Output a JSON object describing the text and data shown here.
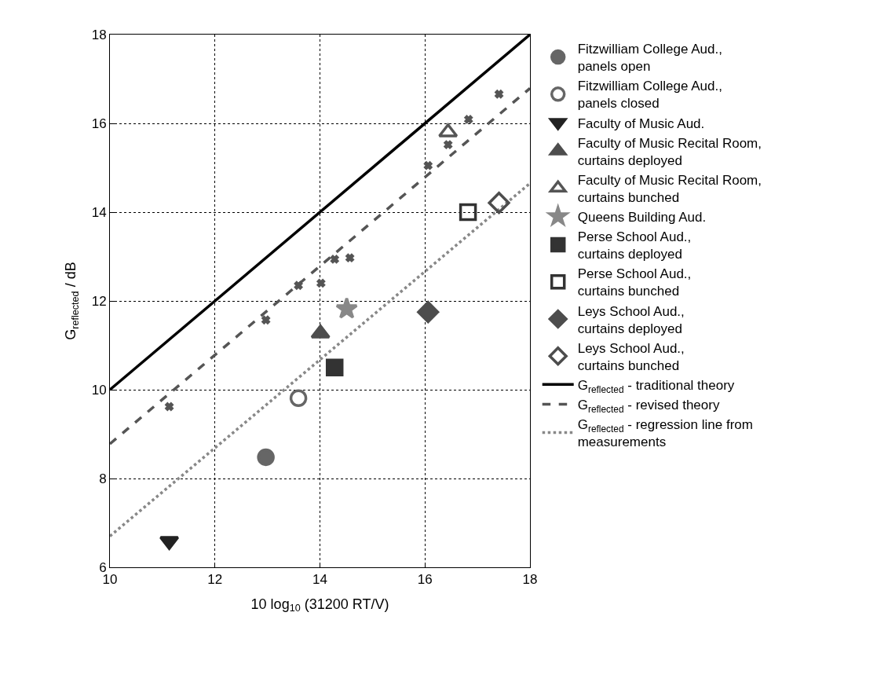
{
  "chart_data": {
    "type": "scatter",
    "xlabel": "10 log$_{10}$ (31200 RT/V)",
    "ylabel": "G$_{reflected}$ / dB",
    "xlim": [
      10,
      18
    ],
    "xticks": [
      10,
      12,
      14,
      16,
      18
    ],
    "ylim": [
      6,
      18
    ],
    "yticks": [
      6,
      8,
      10,
      12,
      14,
      16,
      18
    ],
    "grid": true,
    "legend": "right",
    "series": [
      {
        "name": "Fitzwilliam College Aud.,\npanels open",
        "color": "#666666",
        "marker": "circle",
        "x": [
          12.97
        ],
        "values": [
          8.48
        ]
      },
      {
        "name": "Fitzwilliam College Aud.,\npanels closed",
        "color": "#666666",
        "marker": "circle-open",
        "x": [
          13.59
        ],
        "values": [
          9.81
        ]
      },
      {
        "name": "Faculty of Music Aud.",
        "color": "#222222",
        "marker": "triangle-down",
        "x": [
          11.13
        ],
        "values": [
          6.59
        ]
      },
      {
        "name": "Faculty of Music Recital Room,\ncurtains deployed",
        "color": "#4d4d4d",
        "marker": "triangle",
        "x": [
          14.01
        ],
        "values": [
          11.27
        ]
      },
      {
        "name": "Faculty of Music Recital Room,\ncurtains bunched",
        "color": "#555555",
        "marker": "triangle-open",
        "x": [
          16.44
        ],
        "values": [
          15.8
        ]
      },
      {
        "name": "Queens Building Aud.",
        "color": "#888888",
        "marker": "star",
        "x": [
          14.51
        ],
        "values": [
          11.82
        ]
      },
      {
        "name": "Perse School Aud.,\ncurtains deployed",
        "color": "#333333",
        "marker": "square",
        "x": [
          14.28
        ],
        "values": [
          10.5
        ]
      },
      {
        "name": "Perse School Aud.,\ncurtains bunched",
        "color": "#333333",
        "marker": "square-open",
        "x": [
          16.82
        ],
        "values": [
          14.0
        ]
      },
      {
        "name": "Leys School Aud.,\ncurtains deployed",
        "color": "#4d4d4d",
        "marker": "diamond",
        "x": [
          16.06
        ],
        "values": [
          11.75
        ]
      },
      {
        "name": "Leys School Aud.,\ncurtains bunched",
        "color": "#4d4d4d",
        "marker": "diamond-open",
        "x": [
          17.41
        ],
        "values": [
          14.21
        ]
      },
      {
        "name": "G$_{reflected}$ - traditional theory",
        "type": "line",
        "color": "#000000",
        "line_style": "solid",
        "marker": "none",
        "x": [
          10,
          18
        ],
        "values": [
          10,
          18
        ]
      },
      {
        "color": "#555555",
        "marker": "cross",
        "x": [
          11.13,
          12.97,
          13.59,
          14.02,
          14.28,
          14.57,
          16.06,
          16.44,
          16.83,
          17.41
        ],
        "values": [
          9.62,
          11.57,
          12.35,
          12.4,
          12.94,
          12.97,
          15.05,
          15.52,
          16.09,
          16.66
        ]
      },
      {
        "name": "G$_{reflected}$ - revised theory",
        "type": "line",
        "color": "#555555",
        "line_style": "dashed",
        "marker": "none",
        "x": [
          10,
          18
        ],
        "values": [
          8.78,
          16.79
        ]
      },
      {
        "name": "G$_{reflected}$ - regression line from\nmeasurements",
        "type": "line",
        "color": "#888888",
        "line_style": "dotted",
        "marker": "none",
        "x": [
          10,
          18
        ],
        "values": [
          6.7,
          14.65
        ]
      }
    ]
  }
}
